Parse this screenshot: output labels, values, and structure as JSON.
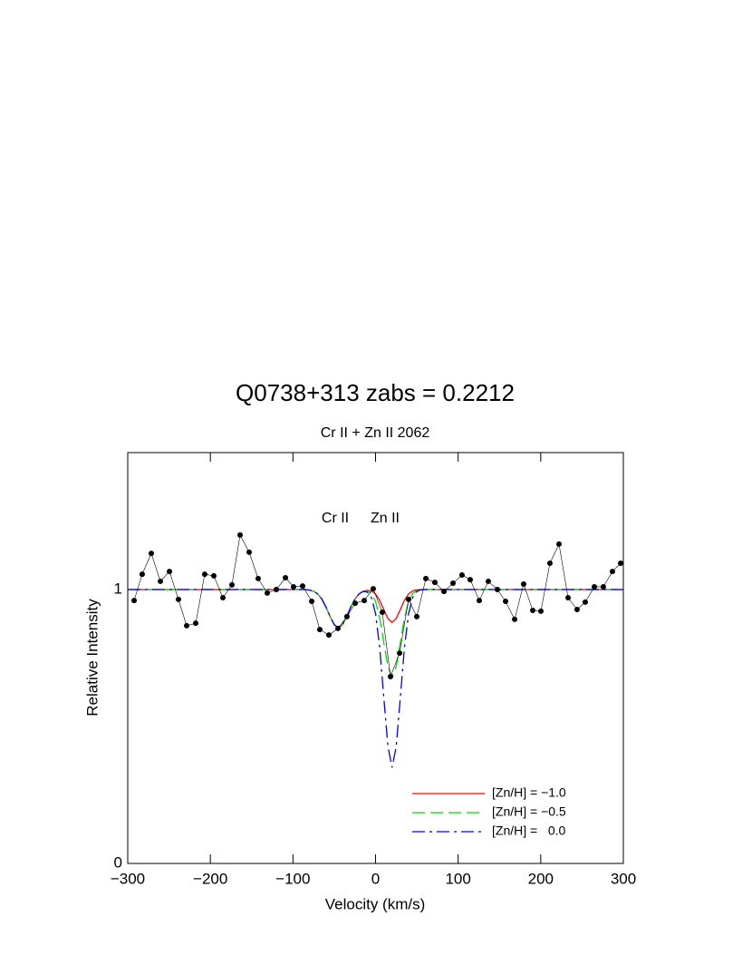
{
  "chart_data": {
    "type": "line",
    "title": "Q0738+313 zabs = 0.2212",
    "subtitle": "Cr II + Zn II 2062",
    "xlabel": "Velocity (km/s)",
    "ylabel": "Relative Intensity",
    "annotations": [
      "Cr II",
      "Zn II"
    ],
    "xlim": [
      -300,
      300
    ],
    "ylim": [
      0,
      1.5
    ],
    "xticks": [
      {
        "value": -300,
        "label": "−300"
      },
      {
        "value": -200,
        "label": "−200"
      },
      {
        "value": -100,
        "label": "−100"
      },
      0,
      100,
      200,
      300
    ],
    "yticks": [
      0,
      1
    ],
    "legend": "lower right",
    "x": [
      -300,
      -90,
      -85,
      -80,
      -75,
      -70,
      -65,
      -60,
      -55,
      -50,
      -45,
      -40,
      -35,
      -30,
      -25,
      -20,
      -15,
      -10,
      -5,
      0,
      5,
      10,
      15,
      20,
      25,
      30,
      35,
      40,
      45,
      50,
      55,
      60,
      300
    ],
    "series": [
      {
        "name": "[Zn/H] = −1.0",
        "color": "#ff0000",
        "dash": "solid",
        "values": [
          1,
          1,
          1,
          0.998,
          0.994,
          0.984,
          0.965,
          0.936,
          0.901,
          0.872,
          0.86,
          0.872,
          0.901,
          0.936,
          0.965,
          0.984,
          0.994,
          0.997,
          0.995,
          0.984,
          0.961,
          0.927,
          0.894,
          0.88,
          0.894,
          0.927,
          0.961,
          0.984,
          0.995,
          0.999,
          1,
          1,
          1
        ]
      },
      {
        "name": "[Zn/H] = −0.5",
        "color": "#00dd00",
        "dash": "dashed",
        "values": [
          1,
          1,
          1,
          0.998,
          0.994,
          0.984,
          0.965,
          0.936,
          0.901,
          0.872,
          0.86,
          0.872,
          0.901,
          0.936,
          0.965,
          0.984,
          0.993,
          0.994,
          0.986,
          0.957,
          0.896,
          0.806,
          0.718,
          0.68,
          0.718,
          0.806,
          0.896,
          0.957,
          0.986,
          0.996,
          0.999,
          1,
          1
        ]
      },
      {
        "name": "[Zn/H] =   0.0",
        "color": "#0000ff",
        "dash": "dashdot",
        "values": [
          1,
          1,
          1,
          0.998,
          0.994,
          0.984,
          0.965,
          0.936,
          0.901,
          0.872,
          0.86,
          0.872,
          0.901,
          0.936,
          0.965,
          0.984,
          0.993,
          0.991,
          0.971,
          0.912,
          0.789,
          0.605,
          0.427,
          0.35,
          0.427,
          0.605,
          0.789,
          0.912,
          0.971,
          0.993,
          0.999,
          1,
          1
        ]
      }
    ],
    "observed": {
      "color": "#000000",
      "x": [
        -292.3,
        -282.5,
        -271.5,
        -260.5,
        -249.5,
        -238.6,
        -228.7,
        -217.7,
        -206.8,
        -195.8,
        -184.8,
        -173.9,
        -164.0,
        -153.0,
        -142.1,
        -131.1,
        -120.1,
        -109.1,
        -99.3,
        -88.3,
        -77.3,
        -67.5,
        -56.5,
        -45.5,
        -34.6,
        -24.7,
        -13.7,
        -2.8,
        8.2,
        18.1,
        29.1,
        40.0,
        49.9,
        60.9,
        71.8,
        82.8,
        93.8,
        104.7,
        114.6,
        125.6,
        136.5,
        147.5,
        157.4,
        168.4,
        179.3,
        190.3,
        200.2,
        211.1,
        222.1,
        233.1,
        244.0,
        253.9,
        264.9,
        275.8,
        286.8,
        296.7
      ],
      "values": [
        0.96,
        1.056,
        1.132,
        1.03,
        1.066,
        0.964,
        0.868,
        0.877,
        1.056,
        1.05,
        0.97,
        1.017,
        1.199,
        1.136,
        1.04,
        0.987,
        1.0,
        1.043,
        1.01,
        1.013,
        0.957,
        0.854,
        0.834,
        0.858,
        0.901,
        0.95,
        0.96,
        1.003,
        0.917,
        0.682,
        0.768,
        0.964,
        0.901,
        1.04,
        1.026,
        0.993,
        1.023,
        1.053,
        1.036,
        0.96,
        1.03,
        1.0,
        0.957,
        0.891,
        1.02,
        0.924,
        0.921,
        1.096,
        1.166,
        0.97,
        0.927,
        0.954,
        1.01,
        1.01,
        1.066,
        1.096
      ]
    }
  }
}
